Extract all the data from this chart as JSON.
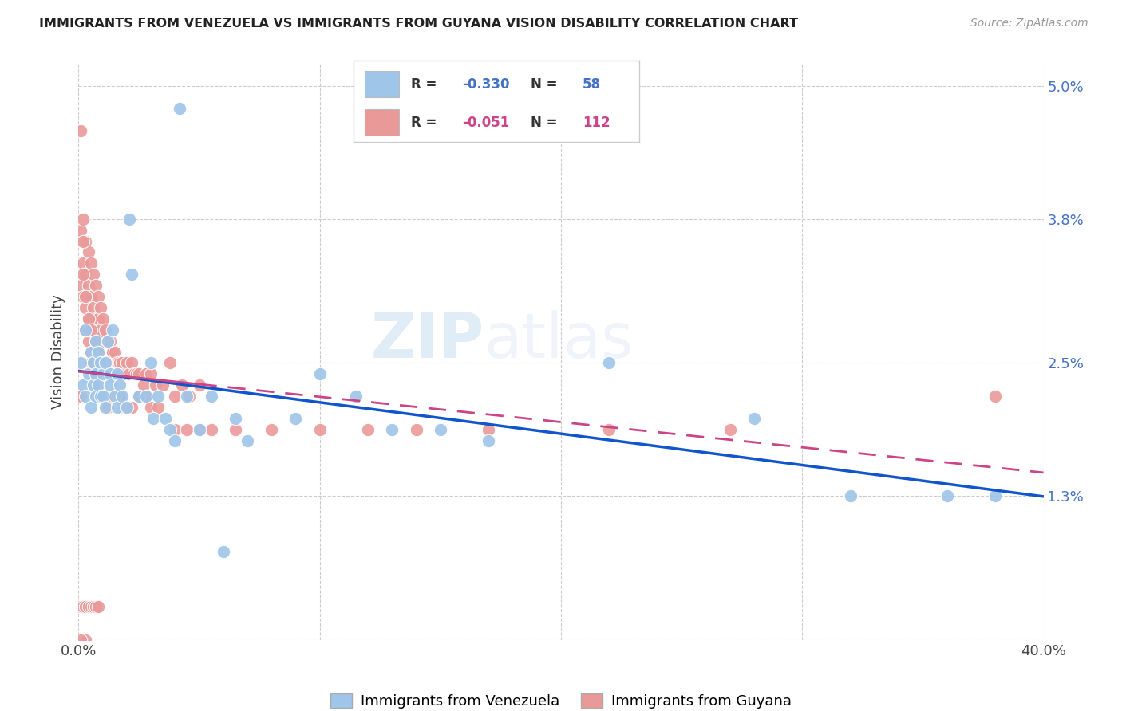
{
  "title": "IMMIGRANTS FROM VENEZUELA VS IMMIGRANTS FROM GUYANA VISION DISABILITY CORRELATION CHART",
  "source": "Source: ZipAtlas.com",
  "ylabel": "Vision Disability",
  "ytick_labels": [
    "",
    "1.3%",
    "2.5%",
    "3.8%",
    "5.0%"
  ],
  "ytick_positions": [
    0.0,
    0.013,
    0.025,
    0.038,
    0.05
  ],
  "xtick_positions": [
    0.0,
    0.1,
    0.2,
    0.3,
    0.4
  ],
  "xtick_labels": [
    "0.0%",
    "",
    "",
    "",
    "40.0%"
  ],
  "watermark_zip": "ZIP",
  "watermark_atlas": "atlas",
  "blue_color": "#9fc5e8",
  "pink_color": "#ea9999",
  "blue_line_color": "#1155cc",
  "pink_line_color": "#cc4488",
  "xlim": [
    0.0,
    0.4
  ],
  "ylim": [
    0.0,
    0.052
  ],
  "venezuela_x": [
    0.001,
    0.002,
    0.003,
    0.003,
    0.004,
    0.005,
    0.005,
    0.006,
    0.006,
    0.007,
    0.007,
    0.007,
    0.008,
    0.008,
    0.009,
    0.009,
    0.01,
    0.01,
    0.011,
    0.011,
    0.012,
    0.013,
    0.013,
    0.014,
    0.015,
    0.016,
    0.016,
    0.017,
    0.018,
    0.02,
    0.021,
    0.022,
    0.025,
    0.028,
    0.03,
    0.031,
    0.033,
    0.036,
    0.038,
    0.04,
    0.05,
    0.055,
    0.06,
    0.065,
    0.07,
    0.09,
    0.1,
    0.115,
    0.13,
    0.15,
    0.17,
    0.22,
    0.28,
    0.32,
    0.36,
    0.38,
    0.042,
    0.045
  ],
  "venezuela_y": [
    0.025,
    0.023,
    0.022,
    0.028,
    0.024,
    0.026,
    0.021,
    0.025,
    0.023,
    0.027,
    0.022,
    0.024,
    0.026,
    0.023,
    0.025,
    0.022,
    0.024,
    0.022,
    0.025,
    0.021,
    0.027,
    0.024,
    0.023,
    0.028,
    0.022,
    0.021,
    0.024,
    0.023,
    0.022,
    0.021,
    0.038,
    0.033,
    0.022,
    0.022,
    0.025,
    0.02,
    0.022,
    0.02,
    0.019,
    0.018,
    0.019,
    0.022,
    0.008,
    0.02,
    0.018,
    0.02,
    0.024,
    0.022,
    0.019,
    0.019,
    0.018,
    0.025,
    0.02,
    0.013,
    0.013,
    0.013,
    0.048,
    0.022
  ],
  "guyana_x": [
    0.001,
    0.001,
    0.001,
    0.002,
    0.002,
    0.002,
    0.003,
    0.003,
    0.003,
    0.003,
    0.004,
    0.004,
    0.004,
    0.004,
    0.005,
    0.005,
    0.005,
    0.005,
    0.006,
    0.006,
    0.006,
    0.006,
    0.007,
    0.007,
    0.007,
    0.008,
    0.008,
    0.008,
    0.009,
    0.009,
    0.009,
    0.01,
    0.01,
    0.011,
    0.011,
    0.012,
    0.013,
    0.013,
    0.014,
    0.015,
    0.016,
    0.017,
    0.018,
    0.019,
    0.02,
    0.021,
    0.022,
    0.023,
    0.024,
    0.025,
    0.027,
    0.028,
    0.03,
    0.032,
    0.035,
    0.038,
    0.04,
    0.043,
    0.046,
    0.05,
    0.001,
    0.002,
    0.002,
    0.003,
    0.004,
    0.004,
    0.005,
    0.005,
    0.006,
    0.007,
    0.007,
    0.008,
    0.009,
    0.01,
    0.011,
    0.012,
    0.013,
    0.014,
    0.015,
    0.016,
    0.017,
    0.018,
    0.019,
    0.02,
    0.022,
    0.025,
    0.028,
    0.03,
    0.033,
    0.04,
    0.045,
    0.05,
    0.055,
    0.065,
    0.08,
    0.1,
    0.12,
    0.14,
    0.17,
    0.22,
    0.27,
    0.001,
    0.002,
    0.003,
    0.004,
    0.005,
    0.006,
    0.007,
    0.008,
    0.003,
    0.001,
    0.38
  ],
  "guyana_y": [
    0.046,
    0.037,
    0.032,
    0.038,
    0.034,
    0.031,
    0.036,
    0.033,
    0.03,
    0.028,
    0.035,
    0.032,
    0.029,
    0.027,
    0.034,
    0.031,
    0.029,
    0.026,
    0.033,
    0.03,
    0.028,
    0.025,
    0.032,
    0.029,
    0.027,
    0.031,
    0.029,
    0.026,
    0.03,
    0.028,
    0.025,
    0.029,
    0.027,
    0.028,
    0.025,
    0.027,
    0.027,
    0.024,
    0.026,
    0.026,
    0.025,
    0.025,
    0.025,
    0.024,
    0.025,
    0.024,
    0.025,
    0.024,
    0.024,
    0.024,
    0.023,
    0.024,
    0.024,
    0.023,
    0.023,
    0.025,
    0.022,
    0.023,
    0.022,
    0.023,
    0.022,
    0.036,
    0.033,
    0.031,
    0.029,
    0.028,
    0.028,
    0.025,
    0.025,
    0.024,
    0.023,
    0.022,
    0.022,
    0.022,
    0.022,
    0.021,
    0.022,
    0.022,
    0.024,
    0.022,
    0.022,
    0.021,
    0.021,
    0.021,
    0.021,
    0.022,
    0.022,
    0.021,
    0.021,
    0.019,
    0.019,
    0.019,
    0.019,
    0.019,
    0.019,
    0.019,
    0.019,
    0.019,
    0.019,
    0.019,
    0.019,
    0.003,
    0.003,
    0.003,
    0.003,
    0.003,
    0.003,
    0.003,
    0.003,
    0.0,
    0.0,
    0.022
  ]
}
